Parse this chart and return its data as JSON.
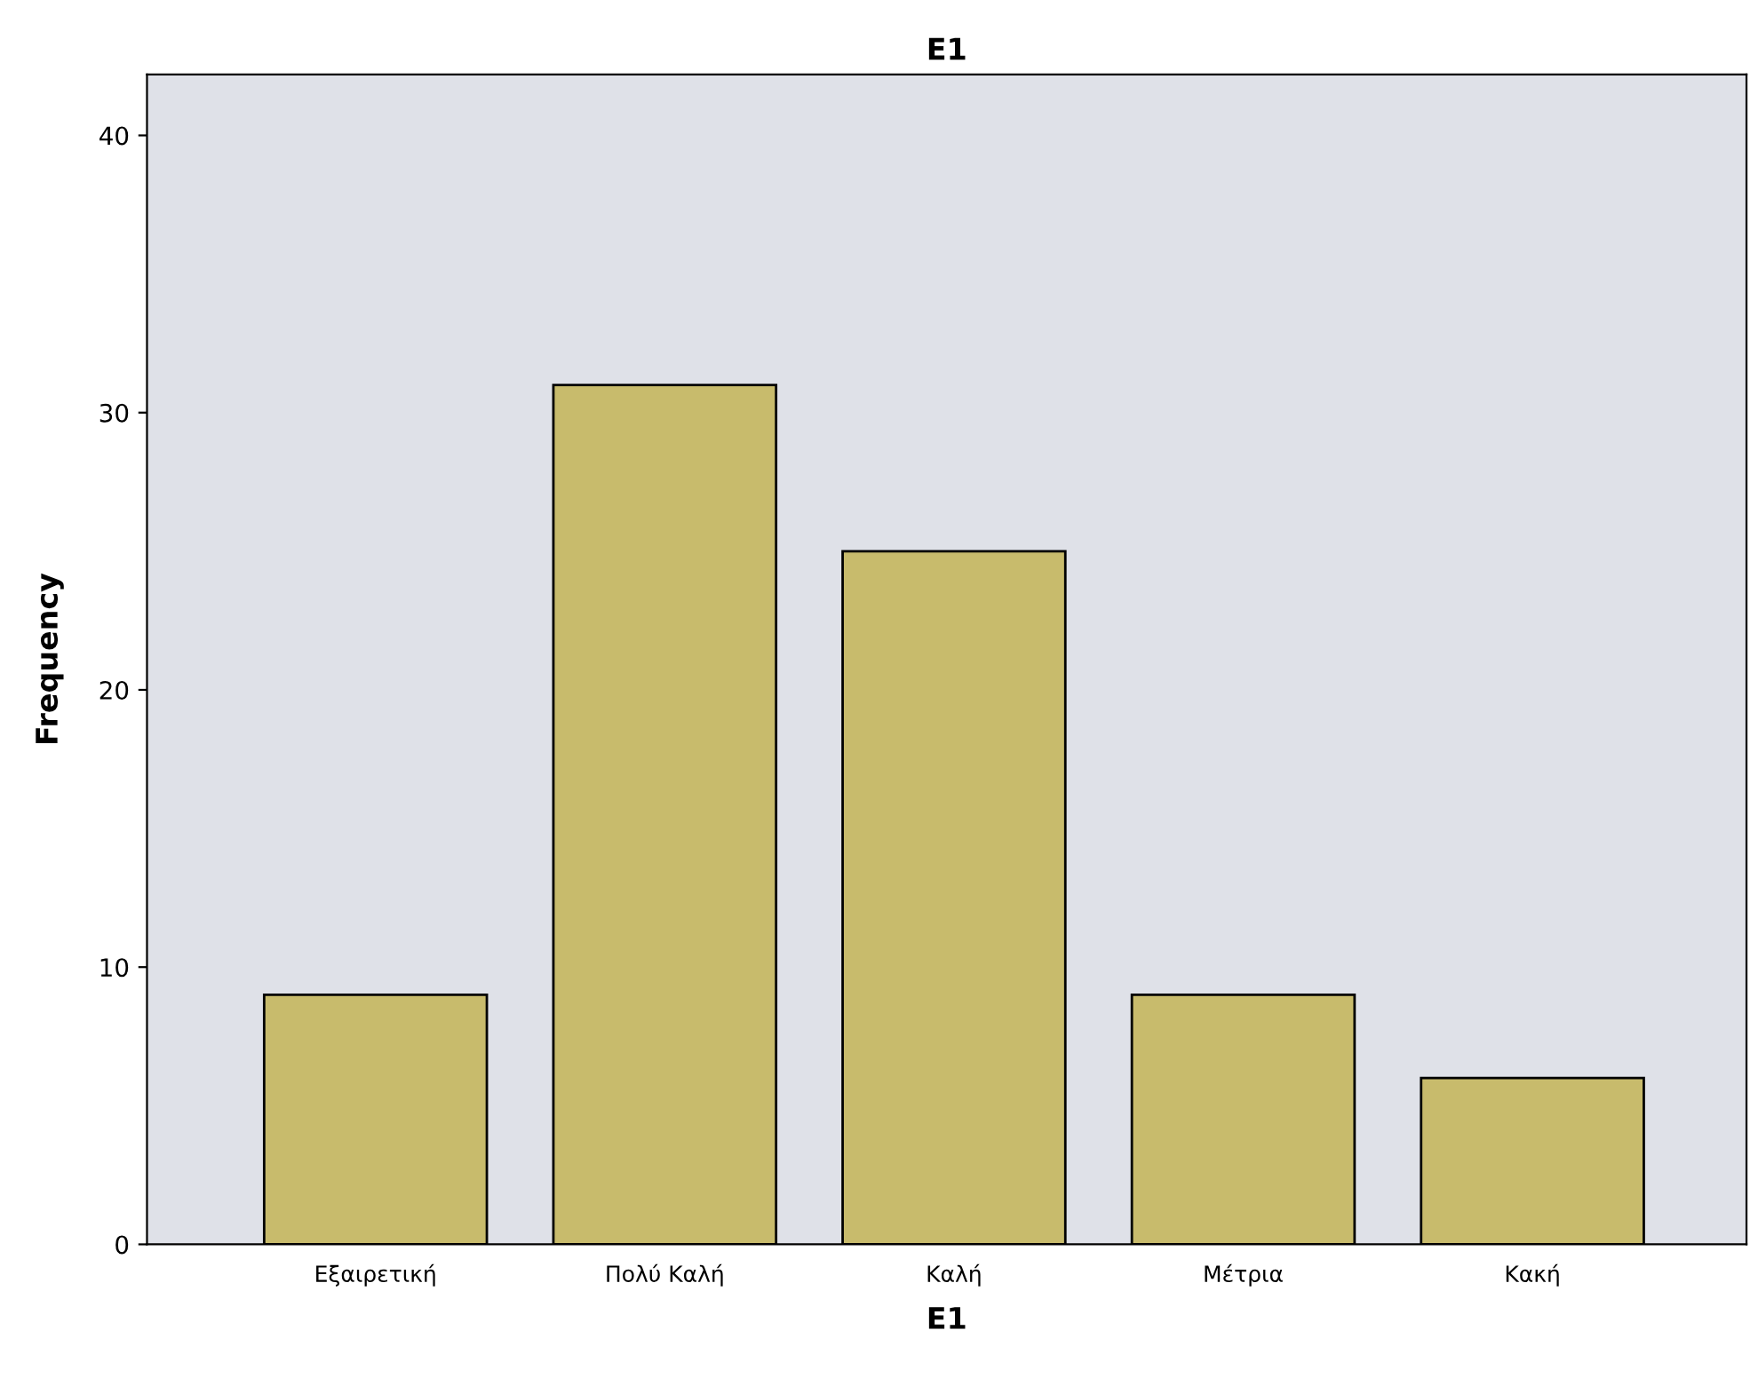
{
  "chart_data": {
    "type": "bar",
    "title": "E1",
    "xlabel": "E1",
    "ylabel": "Frequency",
    "categories": [
      "Εξαιρετική",
      "Πολύ Καλή",
      "Καλή",
      "Μέτρια",
      "Κακή"
    ],
    "values": [
      9,
      31,
      25,
      9,
      6
    ],
    "color": "#c8bb6c",
    "ylim": [
      0,
      42.2
    ],
    "yticks": [
      0,
      10,
      20,
      30,
      40
    ],
    "grid": false,
    "legend": false
  }
}
